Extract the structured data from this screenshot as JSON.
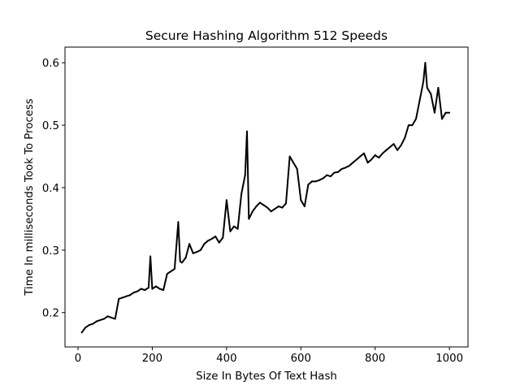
{
  "chart_data": {
    "type": "line",
    "title": "Secure Hashing Algorithm 512 Speeds",
    "xlabel": "Size In Bytes Of Text Hash",
    "ylabel": "Time In milliseconds Took To Process",
    "xlim": [
      -35,
      1050
    ],
    "ylim": [
      0.145,
      0.625
    ],
    "xticks": [
      0,
      200,
      400,
      600,
      800,
      1000
    ],
    "xtick_labels": [
      "0",
      "200",
      "400",
      "600",
      "800",
      "1000"
    ],
    "yticks": [
      0.2,
      0.3,
      0.4,
      0.5,
      0.6
    ],
    "ytick_labels": [
      "0.2",
      "0.3",
      "0.4",
      "0.5",
      "0.6"
    ],
    "grid": false,
    "legend": "none",
    "series": [
      {
        "color": "#000000",
        "x": [
          10,
          20,
          30,
          40,
          50,
          60,
          70,
          80,
          90,
          100,
          110,
          120,
          130,
          140,
          150,
          160,
          170,
          180,
          190,
          195,
          200,
          210,
          220,
          230,
          240,
          250,
          260,
          270,
          275,
          280,
          290,
          300,
          310,
          320,
          330,
          340,
          350,
          360,
          370,
          380,
          390,
          400,
          410,
          420,
          430,
          440,
          450,
          455,
          460,
          470,
          480,
          490,
          500,
          510,
          520,
          530,
          540,
          550,
          560,
          570,
          580,
          590,
          600,
          610,
          620,
          630,
          640,
          650,
          660,
          670,
          680,
          690,
          700,
          710,
          720,
          730,
          740,
          750,
          760,
          770,
          780,
          790,
          800,
          810,
          820,
          830,
          840,
          850,
          860,
          870,
          880,
          890,
          900,
          910,
          920,
          930,
          935,
          940,
          950,
          960,
          970,
          980,
          990,
          1000
        ],
        "y": [
          0.168,
          0.176,
          0.18,
          0.182,
          0.186,
          0.188,
          0.19,
          0.194,
          0.192,
          0.19,
          0.222,
          0.224,
          0.226,
          0.228,
          0.232,
          0.234,
          0.238,
          0.236,
          0.24,
          0.29,
          0.238,
          0.242,
          0.238,
          0.236,
          0.262,
          0.266,
          0.27,
          0.345,
          0.282,
          0.28,
          0.288,
          0.31,
          0.295,
          0.297,
          0.3,
          0.31,
          0.315,
          0.318,
          0.322,
          0.312,
          0.32,
          0.38,
          0.33,
          0.338,
          0.334,
          0.39,
          0.42,
          0.49,
          0.35,
          0.362,
          0.37,
          0.376,
          0.372,
          0.368,
          0.362,
          0.366,
          0.37,
          0.368,
          0.375,
          0.45,
          0.44,
          0.43,
          0.38,
          0.37,
          0.405,
          0.41,
          0.41,
          0.412,
          0.415,
          0.42,
          0.418,
          0.424,
          0.425,
          0.43,
          0.432,
          0.435,
          0.44,
          0.445,
          0.45,
          0.455,
          0.44,
          0.445,
          0.452,
          0.448,
          0.455,
          0.46,
          0.465,
          0.47,
          0.46,
          0.468,
          0.48,
          0.5,
          0.5,
          0.51,
          0.54,
          0.57,
          0.6,
          0.56,
          0.55,
          0.52,
          0.56,
          0.51,
          0.52,
          0.52
        ]
      }
    ]
  }
}
